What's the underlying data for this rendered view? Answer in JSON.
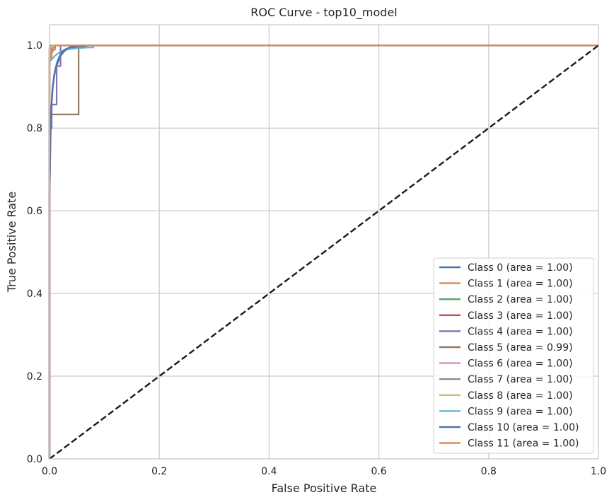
{
  "chart_data": {
    "type": "line",
    "title": "ROC Curve - top10_model",
    "xlabel": "False Positive Rate",
    "ylabel": "True Positive Rate",
    "xlim": [
      0.0,
      1.0
    ],
    "ylim": [
      0.0,
      1.05
    ],
    "xticks": [
      "0.0",
      "0.2",
      "0.4",
      "0.6",
      "0.8",
      "1.0"
    ],
    "yticks": [
      "0.0",
      "0.2",
      "0.4",
      "0.6",
      "0.8",
      "1.0"
    ],
    "grid": true,
    "legend_position": "lower right",
    "diagonal": {
      "x": [
        0,
        1
      ],
      "y": [
        0,
        1
      ],
      "color": "#1a1a1a",
      "style": "dashed"
    },
    "series": [
      {
        "name": "Class 0 (area = 1.00)",
        "color": "#4c72b0",
        "x": [
          0,
          0,
          0.002,
          0.004,
          0.006,
          0.008,
          0.01,
          0.012,
          0.014,
          0.016,
          0.018,
          0.02,
          0.022,
          0.025,
          0.028,
          0.032,
          0.036,
          0.04,
          0.045,
          0.05,
          0.06,
          0.07,
          1.0
        ],
        "y": [
          0,
          0.62,
          0.78,
          0.86,
          0.9,
          0.92,
          0.935,
          0.945,
          0.955,
          0.962,
          0.968,
          0.974,
          0.978,
          0.983,
          0.987,
          0.99,
          0.992,
          0.994,
          0.995,
          0.996,
          0.997,
          1.0,
          1.0
        ]
      },
      {
        "name": "Class 1 (area = 1.00)",
        "color": "#dd8452",
        "x": [
          0,
          0,
          0.003,
          0.003,
          0.006,
          0.006,
          0.01,
          0.01,
          0.08,
          1.0
        ],
        "y": [
          0,
          0.97,
          0.97,
          0.985,
          0.985,
          0.995,
          0.995,
          1.0,
          1.0,
          1.0
        ]
      },
      {
        "name": "Class 2 (area = 1.00)",
        "color": "#55a868",
        "x": [
          0,
          0,
          0.004,
          0.004,
          1.0
        ],
        "y": [
          0,
          0.99,
          0.99,
          1.0,
          1.0
        ]
      },
      {
        "name": "Class 3 (area = 1.00)",
        "color": "#c44e52",
        "x": [
          0,
          0,
          0.003,
          0.003,
          1.0
        ],
        "y": [
          0,
          0.995,
          0.995,
          1.0,
          1.0
        ]
      },
      {
        "name": "Class 4 (area = 1.00)",
        "color": "#8172b3",
        "x": [
          0,
          0,
          0.004,
          0.004,
          0.013,
          0.013,
          0.02,
          0.02,
          1.0
        ],
        "y": [
          0,
          0.8,
          0.8,
          0.857,
          0.857,
          0.95,
          0.95,
          1.0,
          1.0
        ]
      },
      {
        "name": "Class 5 (area = 0.99)",
        "color": "#937860",
        "x": [
          0,
          0,
          0.003,
          0.003,
          0.053,
          0.053,
          1.0
        ],
        "y": [
          0,
          0.833,
          0.833,
          0.833,
          0.833,
          1.0,
          1.0
        ]
      },
      {
        "name": "Class 6 (area = 1.00)",
        "color": "#da8bc3",
        "x": [
          0,
          0,
          0.002,
          0.002,
          1.0
        ],
        "y": [
          0,
          0.99,
          0.99,
          1.0,
          1.0
        ]
      },
      {
        "name": "Class 7 (area = 1.00)",
        "color": "#8c8c8c",
        "x": [
          0,
          0,
          0.003,
          0.003,
          1.0
        ],
        "y": [
          0,
          0.995,
          0.995,
          1.0,
          1.0
        ]
      },
      {
        "name": "Class 8 (area = 1.00)",
        "color": "#ccb974",
        "x": [
          0,
          0,
          0.004,
          0.004,
          1.0
        ],
        "y": [
          0,
          0.995,
          0.995,
          1.0,
          1.0
        ]
      },
      {
        "name": "Class 9 (area = 1.00)",
        "color": "#64b5cd",
        "x": [
          0,
          0,
          0.01,
          0.02,
          0.03,
          0.05,
          0.07,
          0.08,
          0.08,
          1.0
        ],
        "y": [
          0,
          0.96,
          0.975,
          0.985,
          0.99,
          0.993,
          0.995,
          0.995,
          1.0,
          1.0
        ]
      },
      {
        "name": "Class 10 (area = 1.00)",
        "color": "#4c72b0",
        "x": [
          0,
          0,
          0.002,
          0.005,
          0.008,
          0.011,
          0.014,
          0.017,
          0.02,
          0.024,
          0.028,
          0.033,
          0.038,
          0.045,
          0.055,
          1.0
        ],
        "y": [
          0,
          0.64,
          0.82,
          0.89,
          0.925,
          0.945,
          0.96,
          0.97,
          0.978,
          0.985,
          0.99,
          0.993,
          0.996,
          0.998,
          1.0,
          1.0
        ]
      },
      {
        "name": "Class 11 (area = 1.00)",
        "color": "#dd8452",
        "x": [
          0,
          0,
          0.004,
          0.004,
          0.01,
          0.01,
          1.0
        ],
        "y": [
          0,
          0.97,
          0.97,
          0.99,
          0.99,
          1.0,
          1.0
        ]
      }
    ]
  }
}
